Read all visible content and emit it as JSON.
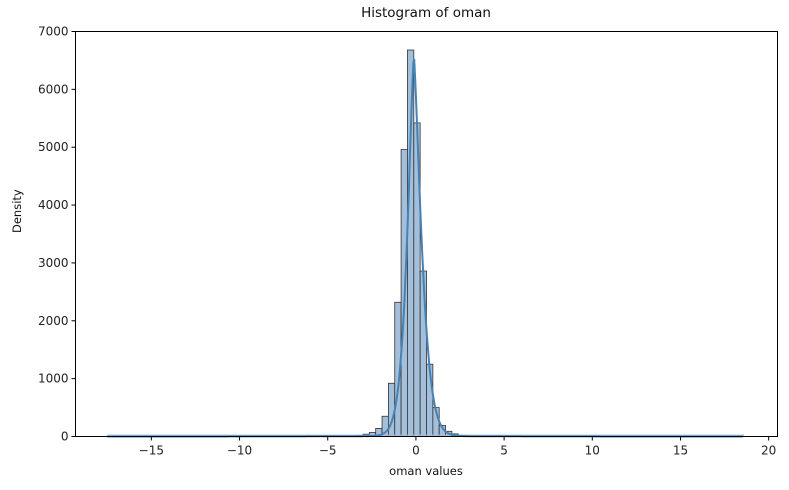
{
  "chart_data": {
    "type": "bar",
    "title": "Histogram of oman",
    "xlabel": "oman values",
    "ylabel": "Density",
    "xlim": [
      -19.3,
      20.5
    ],
    "ylim": [
      0,
      7000
    ],
    "xticks": [
      -15,
      -10,
      -5,
      0,
      5,
      10,
      15,
      20
    ],
    "xtick_labels": [
      "−15",
      "−10",
      "−5",
      "0",
      "5",
      "10",
      "15",
      "20"
    ],
    "yticks": [
      0,
      1000,
      2000,
      3000,
      4000,
      5000,
      6000,
      7000
    ],
    "ytick_labels": [
      "0",
      "1000",
      "2000",
      "3000",
      "4000",
      "5000",
      "6000",
      "7000"
    ],
    "grid": false,
    "legend": null,
    "kde": true,
    "bin_count": 100,
    "data_range": [
      -17.5,
      18.6
    ],
    "bin_width": 0.361,
    "bars": [
      {
        "x": -3.54,
        "value": 10
      },
      {
        "x": -3.18,
        "value": 20
      },
      {
        "x": -2.82,
        "value": 40
      },
      {
        "x": -2.46,
        "value": 70
      },
      {
        "x": -2.1,
        "value": 140
      },
      {
        "x": -1.74,
        "value": 350
      },
      {
        "x": -1.38,
        "value": 920
      },
      {
        "x": -1.02,
        "value": 2320
      },
      {
        "x": -0.66,
        "value": 4960
      },
      {
        "x": -0.3,
        "value": 6680
      },
      {
        "x": 0.06,
        "value": 5420
      },
      {
        "x": 0.42,
        "value": 2860
      },
      {
        "x": 0.78,
        "value": 1250
      },
      {
        "x": 1.14,
        "value": 500
      },
      {
        "x": 1.5,
        "value": 190
      },
      {
        "x": 1.86,
        "value": 90
      },
      {
        "x": 2.22,
        "value": 45
      },
      {
        "x": 2.58,
        "value": 20
      },
      {
        "x": 2.94,
        "value": 10
      }
    ],
    "colors": {
      "bar_fill": "#a3bfd9",
      "bar_edge": "#333333",
      "kde_line": "#4682b4",
      "axes": "#000000"
    }
  }
}
